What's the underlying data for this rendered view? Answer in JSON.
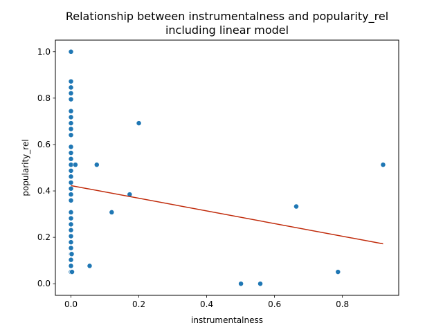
{
  "chart_data": {
    "type": "scatter",
    "title": "Relationship between instrumentalness and popularity_rel",
    "subtitle": "including linear model",
    "xlabel": "instrumentalness",
    "ylabel": "popularity_rel",
    "xlim": [
      -0.046,
      0.966
    ],
    "ylim": [
      -0.05,
      1.05
    ],
    "x_ticks": [
      0.0,
      0.2,
      0.4,
      0.6,
      0.8
    ],
    "x_tick_labels": [
      "0.0",
      "0.2",
      "0.4",
      "0.6",
      "0.8"
    ],
    "y_ticks": [
      0.0,
      0.2,
      0.4,
      0.6,
      0.8,
      1.0
    ],
    "y_tick_labels": [
      "0.0",
      "0.2",
      "0.4",
      "0.6",
      "0.8",
      "1.0"
    ],
    "grid": false,
    "point_color": "#1f77b4",
    "line_color": "#c02a0a",
    "points": [
      [
        0.0,
        1.0
      ],
      [
        0.0,
        0.872
      ],
      [
        0.0,
        0.846
      ],
      [
        0.0,
        0.821
      ],
      [
        0.0,
        0.795
      ],
      [
        0.0,
        0.744
      ],
      [
        0.0,
        0.718
      ],
      [
        0.0,
        0.692
      ],
      [
        0.0,
        0.667
      ],
      [
        0.0,
        0.641
      ],
      [
        0.0,
        0.59
      ],
      [
        0.0,
        0.564
      ],
      [
        0.0,
        0.538
      ],
      [
        0.0,
        0.513
      ],
      [
        0.0,
        0.487
      ],
      [
        0.0,
        0.462
      ],
      [
        0.0,
        0.436
      ],
      [
        0.0,
        0.41
      ],
      [
        0.0,
        0.385
      ],
      [
        0.0,
        0.359
      ],
      [
        0.0,
        0.308
      ],
      [
        0.0,
        0.282
      ],
      [
        0.0,
        0.256
      ],
      [
        0.0,
        0.231
      ],
      [
        0.0,
        0.205
      ],
      [
        0.0,
        0.179
      ],
      [
        0.0,
        0.154
      ],
      [
        0.0,
        0.128
      ],
      [
        0.0,
        0.103
      ],
      [
        0.0,
        0.077
      ],
      [
        0.0,
        0.051
      ],
      [
        0.002,
        0.128
      ],
      [
        0.003,
        0.051
      ],
      [
        0.013,
        0.513
      ],
      [
        0.055,
        0.077
      ],
      [
        0.076,
        0.513
      ],
      [
        0.12,
        0.308
      ],
      [
        0.173,
        0.385
      ],
      [
        0.2,
        0.692
      ],
      [
        0.501,
        0.0
      ],
      [
        0.558,
        0.0
      ],
      [
        0.664,
        0.333
      ],
      [
        0.787,
        0.051
      ],
      [
        0.92,
        0.513
      ]
    ],
    "regression_line": {
      "x": [
        0.0,
        0.92
      ],
      "y": [
        0.423,
        0.172
      ]
    }
  }
}
